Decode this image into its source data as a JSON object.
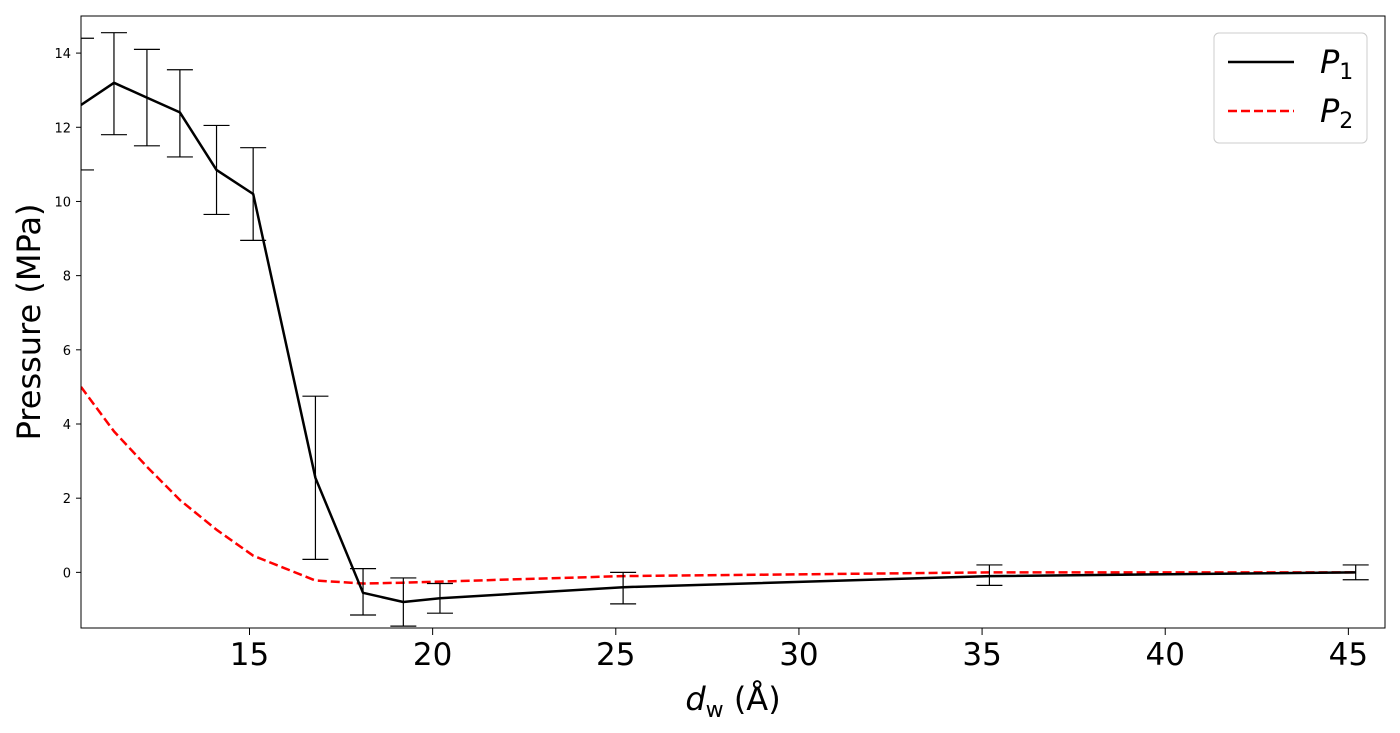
{
  "chart_data": {
    "type": "line",
    "title": "",
    "xlabel": {
      "main": "d",
      "sub": "w",
      "unit": " (Å)"
    },
    "ylabel": "Pressure (MPa)",
    "xlim": [
      10.4,
      46.0
    ],
    "ylim": [
      -1.5,
      15.0
    ],
    "xticks": [
      15,
      20,
      25,
      30,
      35,
      40,
      45
    ],
    "yticks": [
      0,
      2,
      4,
      6,
      8,
      10,
      12,
      14
    ],
    "grid": false,
    "legend_position": "top-right",
    "series": [
      {
        "name": "P",
        "name_sub": "1",
        "color": "#000000",
        "dash": "solid",
        "x": [
          10.4,
          11.3,
          12.2,
          13.1,
          14.1,
          15.1,
          16.8,
          18.1,
          19.2,
          20.2,
          25.2,
          35.2,
          45.2
        ],
        "y": [
          12.6,
          13.2,
          12.8,
          12.4,
          10.85,
          10.2,
          2.55,
          -0.55,
          -0.8,
          -0.7,
          -0.4,
          -0.1,
          0.0
        ],
        "yerr_low": [
          10.85,
          11.8,
          11.5,
          11.2,
          9.65,
          8.95,
          0.35,
          -1.15,
          -1.45,
          -1.1,
          -0.85,
          -0.35,
          -0.2
        ],
        "yerr_high": [
          14.4,
          14.55,
          14.1,
          13.55,
          12.05,
          11.45,
          4.75,
          0.1,
          -0.15,
          -0.3,
          0.0,
          0.2,
          0.2
        ]
      },
      {
        "name": "P",
        "name_sub": "2",
        "color": "#ff0000",
        "dash": "dashed",
        "x": [
          10.4,
          11.3,
          12.2,
          13.1,
          14.1,
          15.1,
          16.8,
          18.1,
          19.2,
          20.2,
          25.2,
          35.2,
          45.2
        ],
        "y": [
          5.0,
          3.8,
          2.85,
          1.95,
          1.15,
          0.45,
          -0.22,
          -0.3,
          -0.28,
          -0.25,
          -0.1,
          0.0,
          0.0
        ]
      }
    ]
  }
}
